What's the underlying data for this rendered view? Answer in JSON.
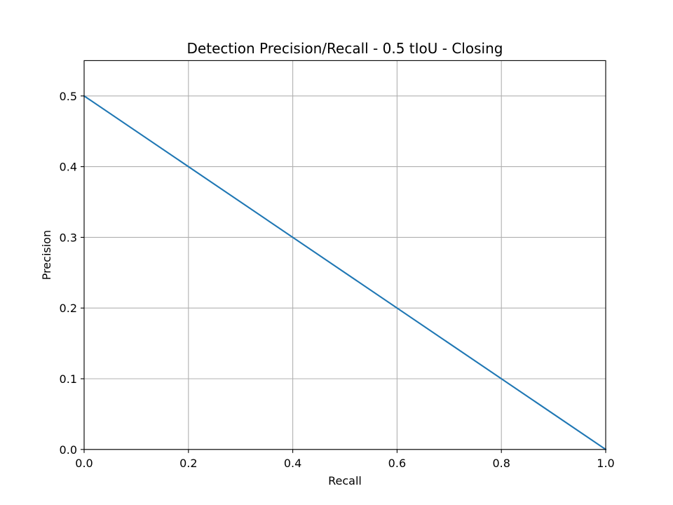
{
  "chart_data": {
    "type": "line",
    "title": "Detection Precision/Recall - 0.5 tIoU - Closing",
    "xlabel": "Recall",
    "ylabel": "Precision",
    "xlim": [
      0.0,
      1.0
    ],
    "ylim": [
      0.0,
      0.55
    ],
    "xticks": [
      "0.0",
      "0.2",
      "0.4",
      "0.6",
      "0.8",
      "1.0"
    ],
    "yticks": [
      "0.0",
      "0.1",
      "0.2",
      "0.3",
      "0.4",
      "0.5"
    ],
    "grid": true,
    "series": [
      {
        "color": "#1f77b4",
        "x": [
          0.0,
          1.0
        ],
        "y": [
          0.5,
          0.0
        ]
      }
    ]
  }
}
